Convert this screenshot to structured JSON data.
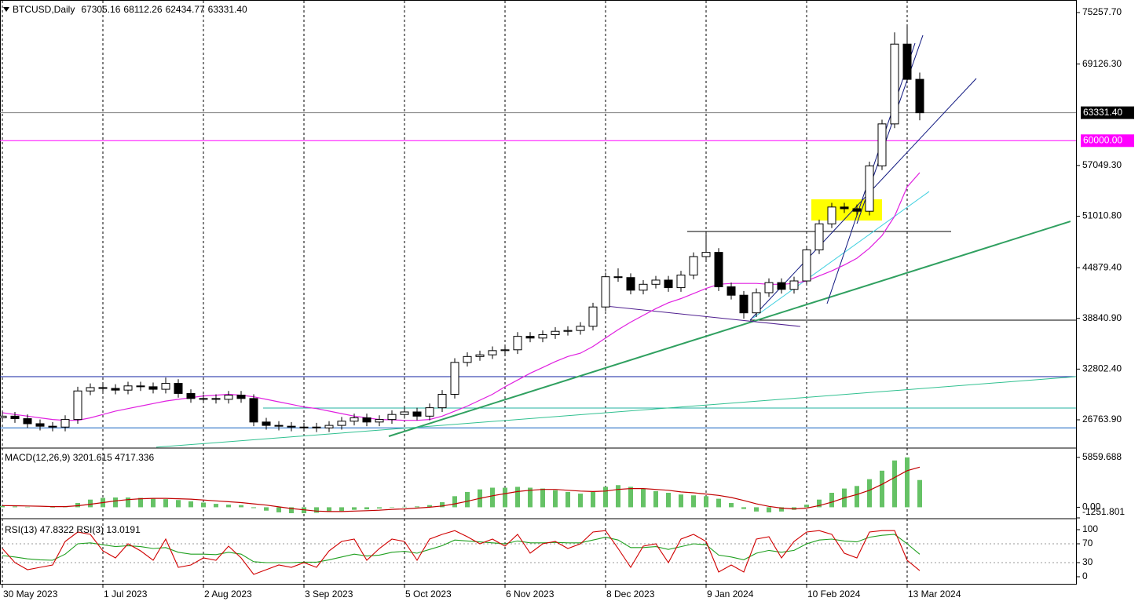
{
  "chart_data": [
    {
      "type": "candlestick",
      "title": "BTCUSD,Daily",
      "ohlc_labels": [
        "67305.16",
        "68112.26",
        "62434.77",
        "63331.40"
      ],
      "x": [
        0,
        4,
        8,
        12,
        16,
        20,
        24,
        28,
        32,
        36,
        40,
        44,
        48,
        52,
        56,
        60,
        64,
        68,
        72,
        76,
        80,
        84,
        88,
        92,
        96,
        100,
        104,
        108,
        112,
        116,
        120,
        124,
        128,
        132,
        136,
        140,
        144,
        148,
        152,
        156,
        160,
        164,
        168,
        172,
        176,
        180,
        184,
        188,
        192,
        196,
        200,
        204,
        208,
        212,
        216,
        220,
        224,
        228,
        232,
        236,
        240,
        244,
        248,
        252,
        256,
        260,
        264,
        268,
        272,
        276,
        280,
        284,
        288,
        292
      ],
      "open": [
        27000,
        27200,
        26900,
        26300,
        26000,
        25900,
        26800,
        30200,
        30600,
        30500,
        30300,
        30800,
        30700,
        30400,
        31100,
        29900,
        29300,
        29300,
        29200,
        29700,
        29300,
        26500,
        26100,
        26000,
        25900,
        25900,
        25800,
        26100,
        26600,
        27000,
        26500,
        26800,
        27400,
        27700,
        27200,
        28200,
        29800,
        33600,
        34300,
        34500,
        35000,
        35100,
        36700,
        36500,
        36900,
        37300,
        37400,
        37900,
        40200,
        43800,
        43700,
        42200,
        42900,
        43400,
        42500,
        44000,
        46200,
        46700,
        42600,
        41600,
        39500,
        41900,
        43100,
        42300,
        43300,
        47000,
        50100,
        52100,
        51900,
        51600,
        57000,
        62000,
        71500,
        67305.16
      ],
      "high": [
        27700,
        27700,
        27400,
        26800,
        26500,
        27300,
        30700,
        31100,
        31100,
        31000,
        31300,
        31300,
        31200,
        31800,
        31600,
        30400,
        29800,
        29800,
        30200,
        30200,
        29800,
        27000,
        26600,
        26500,
        26400,
        26400,
        26600,
        27100,
        27500,
        27500,
        27300,
        27900,
        28200,
        28200,
        28700,
        30300,
        34100,
        34800,
        35000,
        35500,
        35600,
        37200,
        37200,
        37400,
        37800,
        37900,
        38400,
        40700,
        44300,
        44800,
        44200,
        43400,
        43900,
        43900,
        44500,
        46700,
        48900,
        47200,
        43100,
        42100,
        42400,
        43600,
        43600,
        43800,
        47500,
        50600,
        52600,
        52600,
        52400,
        57500,
        62500,
        72900,
        73800,
        68112.26
      ],
      "low": [
        26500,
        26400,
        25800,
        25500,
        25400,
        25400,
        26300,
        29700,
        30000,
        29800,
        29800,
        30200,
        29900,
        29900,
        29400,
        28800,
        28800,
        28700,
        28700,
        28800,
        26000,
        25600,
        25500,
        25400,
        25400,
        25300,
        25300,
        25600,
        26100,
        26000,
        26000,
        26300,
        26900,
        26700,
        26700,
        27700,
        29300,
        33100,
        33800,
        34000,
        34500,
        34600,
        36000,
        36000,
        36400,
        36800,
        36900,
        37400,
        39700,
        43200,
        41700,
        41700,
        42400,
        42000,
        42000,
        43500,
        45700,
        42100,
        41100,
        38800,
        39000,
        41400,
        41800,
        41800,
        42800,
        46500,
        49600,
        51400,
        51100,
        51100,
        56500,
        61500,
        67000,
        62434.77
      ],
      "close": [
        27200,
        26900,
        26300,
        26000,
        25900,
        26800,
        30200,
        30600,
        30500,
        30300,
        30800,
        30700,
        30400,
        31100,
        29900,
        29300,
        29300,
        29200,
        29700,
        29300,
        26500,
        26100,
        26000,
        25900,
        25900,
        25800,
        26100,
        26600,
        27000,
        26500,
        26800,
        27400,
        27700,
        27200,
        28200,
        29800,
        33600,
        34300,
        34500,
        35000,
        35100,
        36700,
        36500,
        36900,
        37300,
        37400,
        37900,
        40200,
        43800,
        43700,
        42200,
        42900,
        43400,
        42500,
        44000,
        46200,
        46700,
        42600,
        41600,
        39500,
        41900,
        43100,
        42300,
        43300,
        47000,
        50100,
        52100,
        51900,
        51600,
        57000,
        62000,
        71500,
        67305.16,
        63331.4
      ],
      "bull_color": "#ffffff",
      "bear_color": "#000000",
      "wick_color": "#000000",
      "ma": {
        "color": "#e020e0",
        "values": [
          27600,
          27400,
          27200,
          27000,
          26800,
          26700,
          26700,
          27000,
          27400,
          27800,
          28100,
          28400,
          28700,
          29000,
          29200,
          29400,
          29600,
          29700,
          29800,
          29700,
          29500,
          29200,
          28900,
          28600,
          28300,
          28100,
          27800,
          27500,
          27200,
          27000,
          26800,
          26760,
          26700,
          26700,
          26800,
          27200,
          27800,
          28400,
          29100,
          29800,
          30700,
          31500,
          32300,
          33000,
          33700,
          34300,
          34700,
          35500,
          36500,
          37500,
          38400,
          39200,
          40000,
          40700,
          41200,
          41800,
          42400,
          42900,
          43000,
          43000,
          43000,
          42900,
          42900,
          43000,
          43300,
          43900,
          44500,
          45200,
          46000,
          47200,
          48700,
          51000,
          54500,
          56200
        ]
      },
      "xlim": [
        -0.75,
        341.75
      ],
      "ylim": [
        23493,
        76752
      ],
      "xticks": [
        {
          "value": 0,
          "label": "30 May 2023"
        },
        {
          "value": 32,
          "label": "1 Jul 2023"
        },
        {
          "value": 64,
          "label": "2 Aug 2023"
        },
        {
          "value": 96,
          "label": "3 Sep 2023"
        },
        {
          "value": 128,
          "label": "5 Oct 2023"
        },
        {
          "value": 160,
          "label": "6 Nov 2023"
        },
        {
          "value": 192,
          "label": "8 Dec 2023"
        },
        {
          "value": 224,
          "label": "9 Jan 2024"
        },
        {
          "value": 256,
          "label": "10 Feb 2024"
        },
        {
          "value": 288,
          "label": "13 Mar 2024"
        }
      ],
      "yticks": [
        {
          "value": 75257.7,
          "label": "75257.70"
        },
        {
          "value": 69126.3,
          "label": "69126.30"
        },
        {
          "value": 57049.3,
          "label": "57049.30"
        },
        {
          "value": 51010.8,
          "label": "51010.80"
        },
        {
          "value": 44879.4,
          "label": "44879.40"
        },
        {
          "value": 38840.9,
          "label": "38840.90"
        },
        {
          "value": 32802.4,
          "label": "32802.40"
        },
        {
          "value": 26763.9,
          "label": "26763.90"
        }
      ],
      "price_tags": [
        {
          "value": 63331.4,
          "label": "63331.40",
          "color": "#808080",
          "tag": "#000000"
        },
        {
          "value": 60000,
          "label": "60000.00",
          "color": "#ff00ff",
          "tag": "#ff00ff"
        }
      ],
      "hlines": [
        {
          "value": 31900,
          "color": "#1020a0"
        },
        {
          "value": 25800,
          "color": "#1060c0"
        },
        {
          "value": 49190,
          "x": [
            218,
            302
          ],
          "color": "#000000"
        },
        {
          "value": 38630,
          "x": [
            238,
            341.75
          ],
          "color": "#000000"
        },
        {
          "value": 28160,
          "x": [
            83,
            341.75
          ],
          "color": "#20b0a0"
        }
      ],
      "zones": [
        {
          "x": [
            257.5,
            280
          ],
          "y": [
            50490,
            53020
          ],
          "color": "#ffff00"
        }
      ],
      "trendlines": [
        {
          "x": [
            123,
            340
          ],
          "y": [
            24800,
            50400
          ],
          "color": "#30a060",
          "width": 2
        },
        {
          "x": [
            49,
            341.75
          ],
          "y": [
            23500,
            31900
          ],
          "color": "#30c090",
          "width": 1
        },
        {
          "x": [
            239,
            295
          ],
          "y": [
            38900,
            53950
          ],
          "color": "#40d0e0",
          "width": 1
        },
        {
          "x": [
            238,
            310
          ],
          "y": [
            38630,
            67410
          ],
          "color": "#101880",
          "width": 1
        },
        {
          "x": [
            272,
            293
          ],
          "y": [
            50120,
            72550
          ],
          "color": "#101880",
          "width": 1
        },
        {
          "x": [
            262.5,
            290.5
          ],
          "y": [
            40590,
            71610
          ],
          "color": "#101880",
          "width": 1
        },
        {
          "x": [
            192,
            254
          ],
          "y": [
            40310,
            37880
          ],
          "color": "#502090",
          "width": 1
        }
      ]
    },
    {
      "type": "macd",
      "title": "MACD(12,26,9) 3201.615 4717.336",
      "values": [
        150,
        100,
        50,
        0,
        -50,
        100,
        500,
        900,
        1100,
        1150,
        1150,
        1100,
        1000,
        950,
        850,
        700,
        550,
        400,
        300,
        250,
        -100,
        -400,
        -600,
        -700,
        -700,
        -650,
        -550,
        -450,
        -300,
        -250,
        -150,
        -50,
        50,
        100,
        250,
        600,
        1300,
        1800,
        2100,
        2300,
        2300,
        2400,
        2300,
        2200,
        2000,
        1800,
        1600,
        1800,
        2400,
        2600,
        2400,
        2200,
        1900,
        1700,
        1500,
        1400,
        1300,
        1000,
        500,
        -200,
        -500,
        -600,
        -500,
        -300,
        300,
        900,
        1700,
        2200,
        2500,
        3300,
        4300,
        5500,
        5860,
        3201.615
      ],
      "signal": [
        200,
        180,
        150,
        120,
        80,
        80,
        180,
        350,
        550,
        750,
        900,
        1000,
        1050,
        1050,
        1000,
        950,
        850,
        750,
        650,
        550,
        400,
        250,
        50,
        -150,
        -300,
        -450,
        -500,
        -500,
        -450,
        -400,
        -350,
        -250,
        -200,
        -100,
        0,
        150,
        400,
        700,
        1050,
        1350,
        1600,
        1850,
        2000,
        2100,
        2100,
        2000,
        1900,
        1850,
        1900,
        2100,
        2200,
        2200,
        2100,
        2000,
        1800,
        1700,
        1550,
        1400,
        1150,
        800,
        400,
        100,
        -100,
        -200,
        -100,
        200,
        600,
        1100,
        1500,
        2000,
        2700,
        3500,
        4300,
        4717.336
      ],
      "color": "#66c266",
      "signal_color": "#c00000",
      "ylim": [
        -1251.801,
        6867
      ],
      "yticks": [
        {
          "value": 5859.688,
          "label": "5859.688"
        },
        {
          "value": 0,
          "label": "0.00"
        },
        {
          "value": -1251.801,
          "label": "-1251.801"
        }
      ]
    },
    {
      "type": "rsi",
      "title": "RSI(13) 47.8322  RSI(3) 13.0191",
      "series": [
        {
          "name": "RSI(13)",
          "color": "#20a020",
          "values": [
            45,
            42,
            38,
            36,
            35,
            48,
            70,
            72,
            68,
            64,
            66,
            64,
            60,
            62,
            52,
            48,
            48,
            47,
            52,
            48,
            32,
            30,
            30,
            30,
            31,
            31,
            36,
            42,
            48,
            44,
            46,
            52,
            54,
            50,
            58,
            66,
            78,
            76,
            74,
            72,
            70,
            76,
            72,
            72,
            73,
            72,
            72,
            78,
            84,
            78,
            62,
            62,
            64,
            58,
            64,
            70,
            68,
            46,
            42,
            36,
            50,
            56,
            52,
            56,
            70,
            78,
            80,
            76,
            74,
            84,
            88,
            90,
            70,
            47.8322
          ]
        },
        {
          "name": "RSI(3)",
          "color": "#d00000",
          "values": [
            60,
            30,
            15,
            20,
            25,
            75,
            95,
            90,
            55,
            40,
            70,
            55,
            35,
            80,
            20,
            25,
            40,
            35,
            65,
            40,
            5,
            15,
            25,
            20,
            30,
            20,
            55,
            75,
            80,
            35,
            60,
            80,
            75,
            35,
            80,
            90,
            98,
            85,
            70,
            80,
            65,
            90,
            50,
            70,
            75,
            60,
            70,
            95,
            98,
            60,
            20,
            65,
            70,
            30,
            80,
            90,
            75,
            10,
            25,
            10,
            80,
            85,
            40,
            75,
            95,
            98,
            90,
            50,
            40,
            95,
            98,
            98,
            35,
            13.0191
          ]
        }
      ],
      "ylim": [
        -16.7,
        120
      ],
      "yticks": [
        100,
        70,
        30,
        0
      ],
      "levels": [
        70,
        30
      ]
    }
  ]
}
